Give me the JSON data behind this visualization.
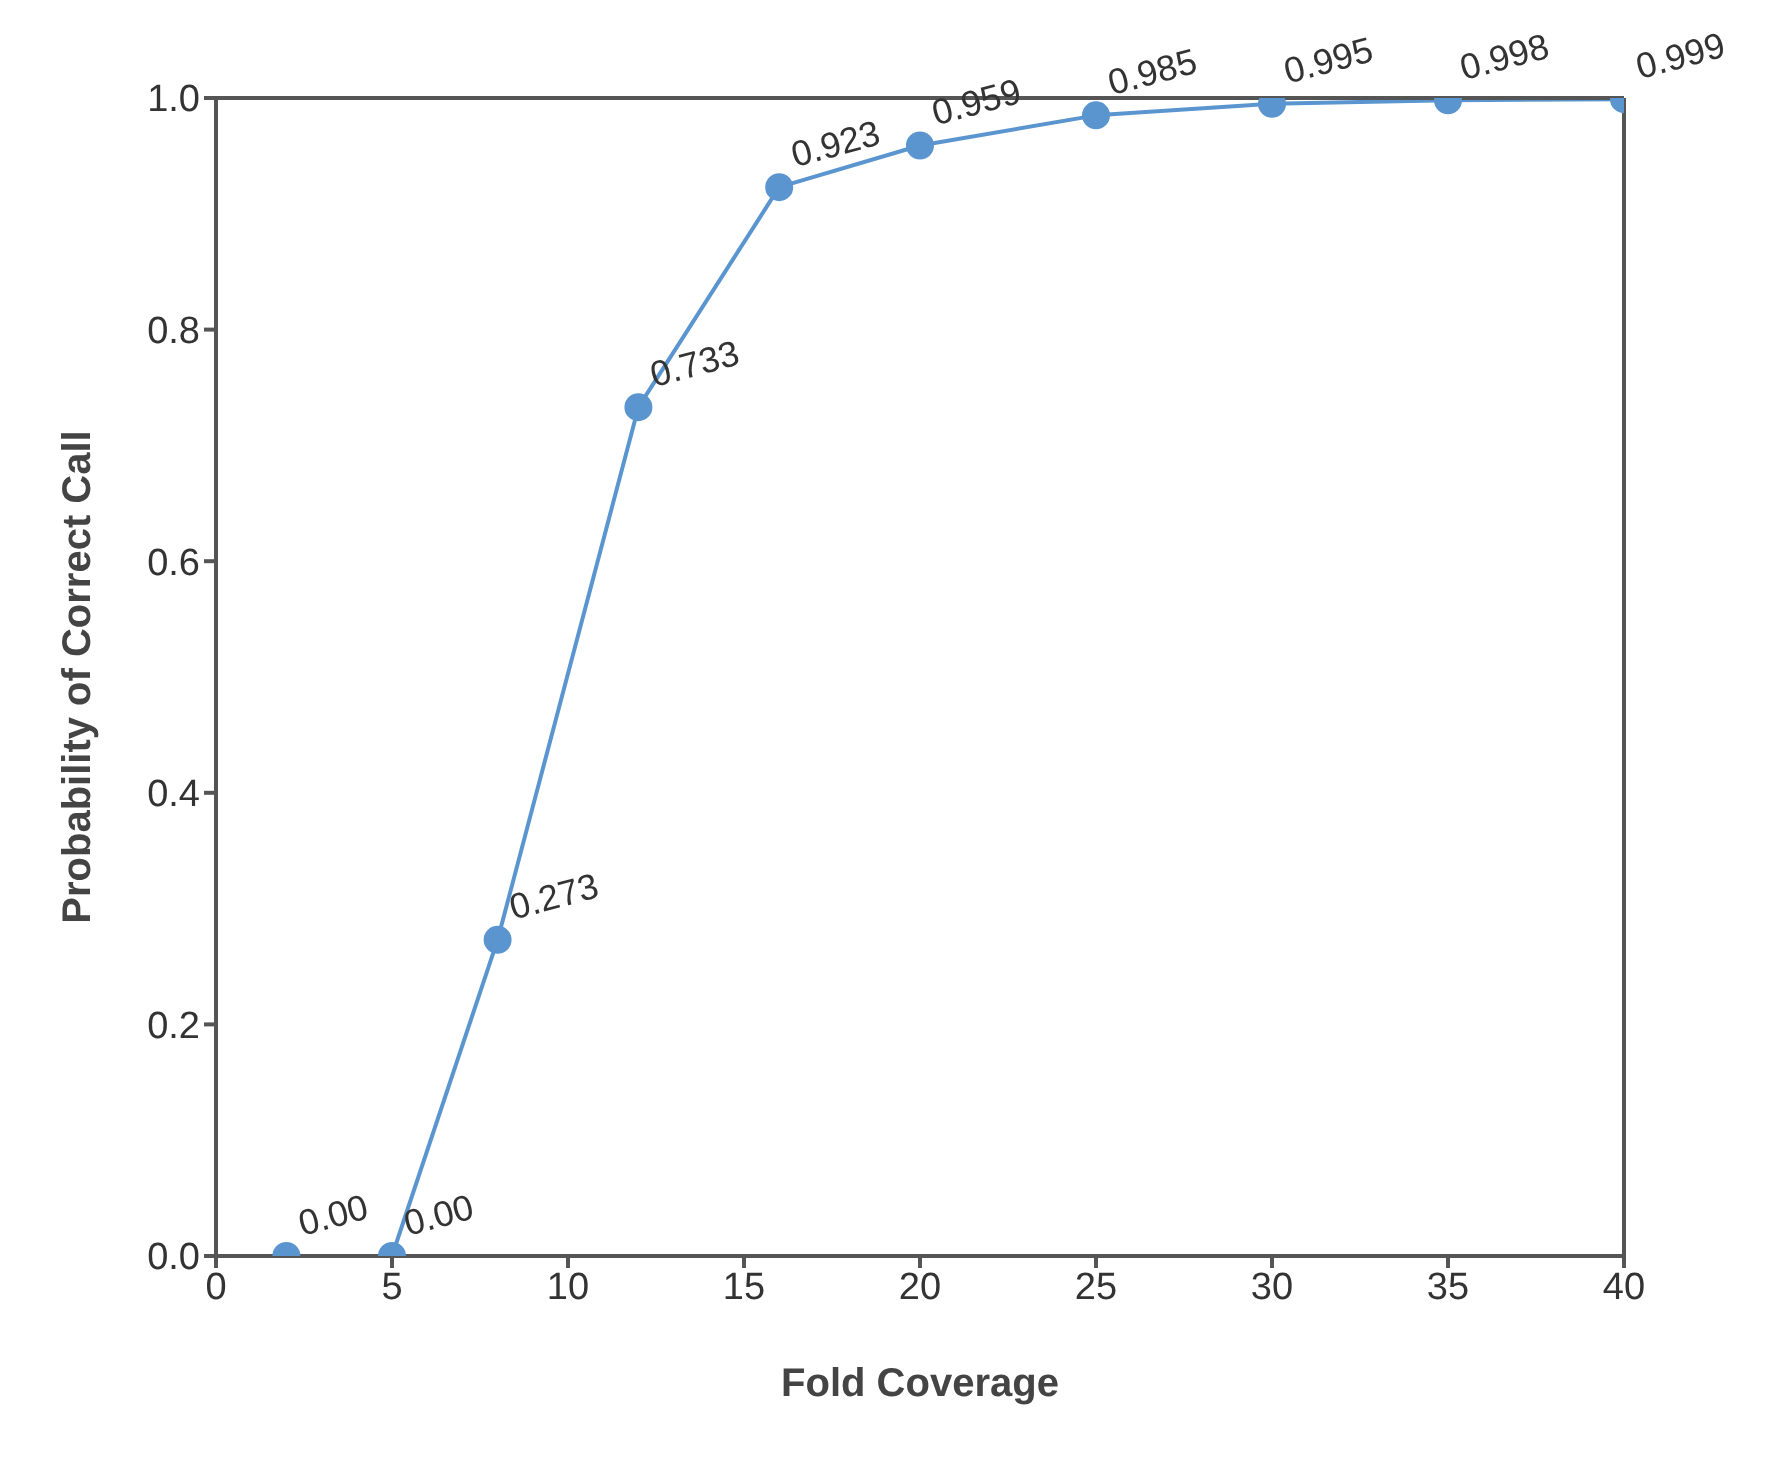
{
  "chart_data": {
    "type": "line",
    "xlabel": "Fold Coverage",
    "ylabel": "Probability of Correct Call",
    "x": [
      2,
      5,
      8,
      12,
      16,
      20,
      25,
      30,
      35,
      40
    ],
    "series": [
      {
        "color": "#5b95cf",
        "values": [
          0,
          0,
          0.273,
          0.733,
          0.923,
          0.959,
          0.985,
          0.995,
          0.998,
          0.999
        ],
        "value_labels": [
          "0.00",
          "0.00",
          "0.273",
          "0.733",
          "0.923",
          "0.959",
          "0.985",
          "0.995",
          "0.998",
          "0.999"
        ]
      }
    ],
    "xlim": [
      0,
      40
    ],
    "xticks": [
      0,
      5,
      10,
      15,
      20,
      25,
      30,
      35,
      40
    ],
    "ylim": [
      0,
      1
    ],
    "yticks": [
      {
        "value": 0,
        "label": "0.0"
      },
      {
        "value": 0.2,
        "label": "0.2"
      },
      {
        "value": 0.4,
        "label": "0.4"
      },
      {
        "value": 0.6,
        "label": "0.6"
      },
      {
        "value": 0.8,
        "label": "0.8"
      },
      {
        "value": 1,
        "label": "1.0"
      }
    ],
    "grid": false,
    "legend": false,
    "marker": "circle",
    "line_style": "solid"
  }
}
